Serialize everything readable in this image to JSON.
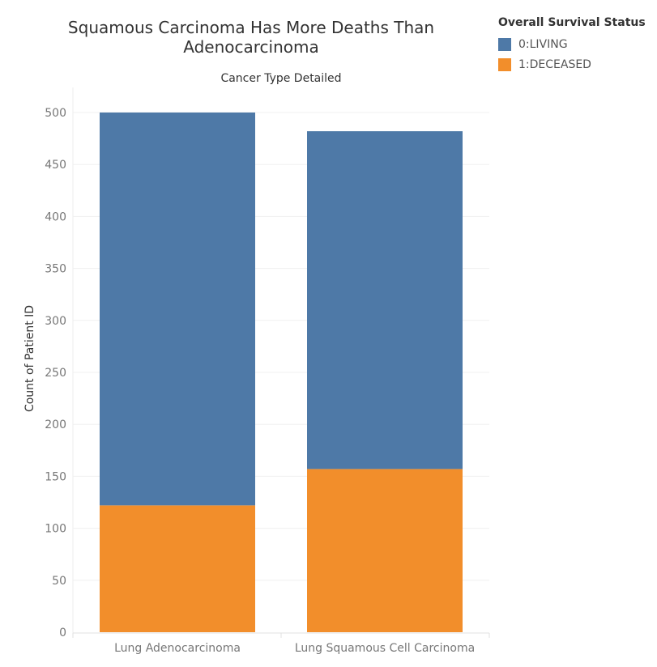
{
  "chart_data": {
    "type": "bar",
    "stacked": true,
    "title": "Squamous Carcinoma Has More Deaths Than Adenocarcinoma",
    "column_header": "Cancer Type Detailed",
    "ylabel": "Count of Patient ID",
    "xlabel": "",
    "ylim": [
      0,
      500
    ],
    "yticks": [
      0,
      50,
      100,
      150,
      200,
      250,
      300,
      350,
      400,
      450,
      500
    ],
    "grid": true,
    "categories": [
      "Lung Adenocarcinoma",
      "Lung Squamous Cell Carcinoma"
    ],
    "legend": {
      "title": "Overall Survival Status",
      "placement": "top-right"
    },
    "series": [
      {
        "name": "1:DECEASED",
        "color": "#f28e2b",
        "values": [
          122,
          157
        ]
      },
      {
        "name": "0:LIVING",
        "color": "#4e79a7",
        "values": [
          378,
          325
        ]
      }
    ]
  }
}
